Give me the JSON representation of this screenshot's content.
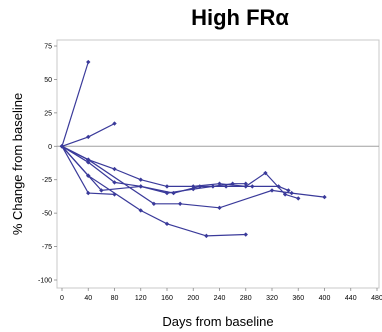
{
  "chart_data": {
    "type": "line",
    "title": "High FRα",
    "xlabel": "Days from baseline",
    "ylabel": "% Change from baseline",
    "xlim": [
      0,
      480
    ],
    "ylim": [
      -100,
      75
    ],
    "xticks": [
      0,
      40,
      80,
      120,
      160,
      200,
      240,
      280,
      320,
      360,
      400,
      440,
      480
    ],
    "yticks": [
      75,
      50,
      25,
      0,
      -25,
      -50,
      -75,
      -100
    ],
    "reference_line": 0,
    "colors": {
      "series": "#3a3a9a",
      "reference": "#a0a0a0",
      "frame": "#c8c8c8"
    },
    "series": [
      {
        "x": [
          0,
          40
        ],
        "y": [
          0,
          63
        ]
      },
      {
        "x": [
          0,
          40,
          80
        ],
        "y": [
          0,
          7,
          17
        ]
      },
      {
        "x": [
          0,
          40,
          80
        ],
        "y": [
          0,
          -35,
          -36
        ]
      },
      {
        "x": [
          0,
          40,
          120,
          160,
          220,
          280
        ],
        "y": [
          0,
          -22,
          -48,
          -58,
          -67,
          -66
        ]
      },
      {
        "x": [
          0,
          40,
          140,
          180,
          240,
          320,
          350,
          400
        ],
        "y": [
          0,
          -10,
          -43,
          -43,
          -46,
          -33,
          -35,
          -38
        ]
      },
      {
        "x": [
          0,
          40,
          80,
          120,
          160,
          200,
          230,
          260,
          280
        ],
        "y": [
          0,
          -12,
          -27,
          -30,
          -35,
          -32,
          -30,
          -28,
          -28
        ]
      },
      {
        "x": [
          0,
          40,
          80,
          120,
          160,
          200,
          240,
          280,
          310,
          340,
          360
        ],
        "y": [
          0,
          -10,
          -17,
          -25,
          -30,
          -30,
          -28,
          -30,
          -20,
          -36,
          -39
        ]
      },
      {
        "x": [
          0,
          40,
          60,
          120,
          170,
          210,
          250,
          290,
          330,
          345
        ],
        "y": [
          0,
          -22,
          -33,
          -30,
          -35,
          -30,
          -30,
          -30,
          -30,
          -33
        ]
      }
    ]
  }
}
